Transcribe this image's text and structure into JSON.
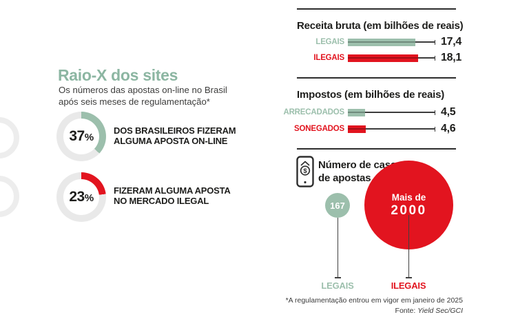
{
  "colors": {
    "green": "#9cbfac",
    "green_title": "#8cb6a2",
    "red": "#e2141f",
    "dark": "#1d1d1b",
    "track": "#e9e9e9"
  },
  "left": {
    "title": "Raio-X dos sites",
    "subtitle": [
      "Os números das apostas on-line no Brasil",
      "após seis meses de regulamentação*"
    ],
    "donuts": [
      {
        "pct": 37,
        "pct_num": "37",
        "pct_sym": "%",
        "color": "#9cbfac",
        "desc": [
          "DOS BRASILEIROS FIZERAM",
          "ALGUMA APOSTA ON-LINE"
        ]
      },
      {
        "pct": 23,
        "pct_num": "23",
        "pct_sym": "%",
        "color": "#e2141f",
        "desc": [
          "FIZERAM ALGUMA APOSTA",
          "NO MERCADO ILEGAL"
        ]
      }
    ]
  },
  "receita": {
    "title": "Receita bruta (em bilhões de reais)",
    "rows": [
      {
        "label": "LEGAIS",
        "value": 17.4,
        "value_label": "17,4",
        "color": "#9cbfac"
      },
      {
        "label": "ILEGAIS",
        "value": 18.1,
        "value_label": "18,1",
        "color": "#e2141f"
      }
    ]
  },
  "impostos": {
    "title": "Impostos (em bilhões de reais)",
    "rows": [
      {
        "label": "ARRECADADOS",
        "value": 4.5,
        "value_label": "4,5",
        "color": "#9cbfac"
      },
      {
        "label": "SONEGADOS",
        "value": 4.6,
        "value_label": "4,6",
        "color": "#e2141f"
      }
    ]
  },
  "casas": {
    "title": [
      "Número de casas",
      "de apostas"
    ],
    "icon": "betting-house-phone-icon",
    "bubbles": [
      {
        "label": "LEGAIS",
        "value": 167,
        "value_label": "167",
        "color": "#9cbfac"
      },
      {
        "label": "ILEGAIS",
        "value": 2000,
        "value_lines": [
          "Mais de",
          "2000"
        ],
        "value_label": "Mais de 2000",
        "color": "#e2141f"
      }
    ]
  },
  "footnote": {
    "note": "*A regulamentação entrou em vigor em janeiro de 2025",
    "source_label": "Fonte:",
    "source": "Yield Sec/GCI"
  },
  "chart_data": [
    {
      "type": "pie",
      "subtype": "donut",
      "title": "Raio-X dos sites",
      "subtitle": "Os números das apostas on-line no Brasil após seis meses de regulamentação*",
      "series": [
        {
          "name": "DOS BRASILEIROS FIZERAM ALGUMA APOSTA ON-LINE",
          "value_pct": 37,
          "color": "#9cbfac"
        },
        {
          "name": "FIZERAM ALGUMA APOSTA NO MERCADO ILEGAL",
          "value_pct": 23,
          "color": "#e2141f"
        }
      ]
    },
    {
      "type": "bar",
      "orientation": "horizontal",
      "title": "Receita bruta (em bilhões de reais)",
      "categories": [
        "LEGAIS",
        "ILEGAIS"
      ],
      "values": [
        17.4,
        18.1
      ],
      "value_labels": [
        "17,4",
        "18,1"
      ],
      "colors": [
        "#9cbfac",
        "#e2141f"
      ],
      "xlim": [
        0,
        22
      ]
    },
    {
      "type": "bar",
      "orientation": "horizontal",
      "title": "Impostos (em bilhões de reais)",
      "categories": [
        "ARRECADADOS",
        "SONEGADOS"
      ],
      "values": [
        4.5,
        4.6
      ],
      "value_labels": [
        "4,5",
        "4,6"
      ],
      "colors": [
        "#9cbfac",
        "#e2141f"
      ],
      "xlim": [
        0,
        22
      ]
    },
    {
      "type": "bubble",
      "title": "Número de casas de apostas",
      "categories": [
        "LEGAIS",
        "ILEGAIS"
      ],
      "values": [
        167,
        2000
      ],
      "value_labels": [
        "167",
        "Mais de 2000"
      ],
      "colors": [
        "#9cbfac",
        "#e2141f"
      ]
    }
  ]
}
